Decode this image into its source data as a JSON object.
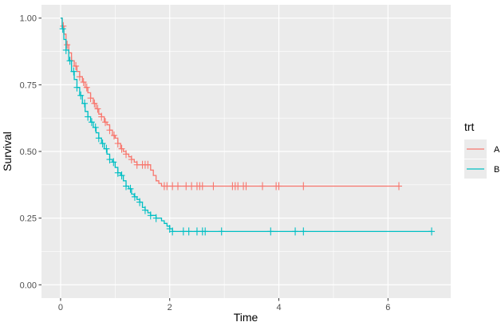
{
  "chart_data": {
    "type": "line",
    "subtype": "kaplan-meier-step",
    "xlabel": "Time",
    "ylabel": "Survival",
    "xlim": [
      -0.35,
      7.15
    ],
    "ylim": [
      -0.05,
      1.05
    ],
    "x_ticks": [
      0,
      2,
      4,
      6
    ],
    "x_tick_labels": [
      "0",
      "2",
      "4",
      "6"
    ],
    "y_ticks": [
      0,
      0.25,
      0.5,
      0.75,
      1
    ],
    "y_tick_labels": [
      "0.00",
      "0.25",
      "0.50",
      "0.75",
      "1.00"
    ],
    "grid": true,
    "legend": {
      "title": "trt",
      "placement": "right",
      "entries": [
        "A",
        "B"
      ]
    },
    "series": [
      {
        "name": "A",
        "color": "#F8766D",
        "x": [
          0,
          0.03,
          0.06,
          0.1,
          0.15,
          0.2,
          0.25,
          0.3,
          0.35,
          0.4,
          0.45,
          0.5,
          0.55,
          0.6,
          0.65,
          0.7,
          0.75,
          0.8,
          0.85,
          0.9,
          0.95,
          1.0,
          1.05,
          1.1,
          1.15,
          1.2,
          1.25,
          1.3,
          1.35,
          1.4,
          1.45,
          1.5,
          1.55,
          1.6,
          1.65,
          1.7,
          1.75,
          1.8,
          1.85,
          1.9,
          6.2
        ],
        "y": [
          1.0,
          0.97,
          0.94,
          0.9,
          0.87,
          0.84,
          0.82,
          0.8,
          0.78,
          0.76,
          0.74,
          0.72,
          0.7,
          0.68,
          0.66,
          0.64,
          0.63,
          0.61,
          0.6,
          0.58,
          0.56,
          0.55,
          0.53,
          0.51,
          0.5,
          0.49,
          0.48,
          0.47,
          0.46,
          0.45,
          0.45,
          0.45,
          0.45,
          0.45,
          0.43,
          0.41,
          0.39,
          0.38,
          0.37,
          0.37,
          0.37
        ],
        "censor_x": [
          0.05,
          0.12,
          0.2,
          0.28,
          0.35,
          0.42,
          0.48,
          0.55,
          0.62,
          0.68,
          0.75,
          0.82,
          0.9,
          0.98,
          1.05,
          1.12,
          1.2,
          1.3,
          1.4,
          1.5,
          1.55,
          1.6,
          1.9,
          1.95,
          2.05,
          2.15,
          2.3,
          2.4,
          2.5,
          2.55,
          2.6,
          2.8,
          3.15,
          3.2,
          3.25,
          3.35,
          3.4,
          3.7,
          3.95,
          4.0,
          4.45,
          6.2
        ]
      },
      {
        "name": "B",
        "color": "#00BFC4",
        "x": [
          0,
          0.03,
          0.06,
          0.1,
          0.15,
          0.2,
          0.25,
          0.3,
          0.35,
          0.4,
          0.45,
          0.5,
          0.55,
          0.6,
          0.65,
          0.7,
          0.75,
          0.8,
          0.85,
          0.9,
          0.95,
          1.0,
          1.05,
          1.1,
          1.15,
          1.2,
          1.25,
          1.3,
          1.35,
          1.4,
          1.45,
          1.5,
          1.55,
          1.6,
          1.65,
          1.7,
          1.75,
          1.8,
          1.85,
          1.9,
          1.95,
          2.0,
          2.05,
          6.8
        ],
        "y": [
          1.0,
          0.96,
          0.92,
          0.88,
          0.84,
          0.8,
          0.77,
          0.74,
          0.71,
          0.68,
          0.65,
          0.63,
          0.61,
          0.59,
          0.57,
          0.55,
          0.53,
          0.51,
          0.49,
          0.47,
          0.46,
          0.44,
          0.42,
          0.41,
          0.39,
          0.37,
          0.36,
          0.34,
          0.33,
          0.32,
          0.31,
          0.29,
          0.28,
          0.27,
          0.26,
          0.26,
          0.25,
          0.25,
          0.24,
          0.23,
          0.22,
          0.21,
          0.2,
          0.2
        ],
        "censor_x": [
          0.04,
          0.1,
          0.17,
          0.24,
          0.3,
          0.37,
          0.44,
          0.5,
          0.57,
          0.64,
          0.7,
          0.77,
          0.84,
          0.9,
          0.97,
          1.05,
          1.12,
          1.2,
          1.28,
          1.36,
          1.45,
          1.55,
          1.65,
          1.75,
          2.0,
          2.05,
          2.25,
          2.35,
          2.5,
          2.6,
          2.65,
          2.95,
          3.85,
          4.3,
          4.45,
          6.8
        ]
      }
    ]
  }
}
